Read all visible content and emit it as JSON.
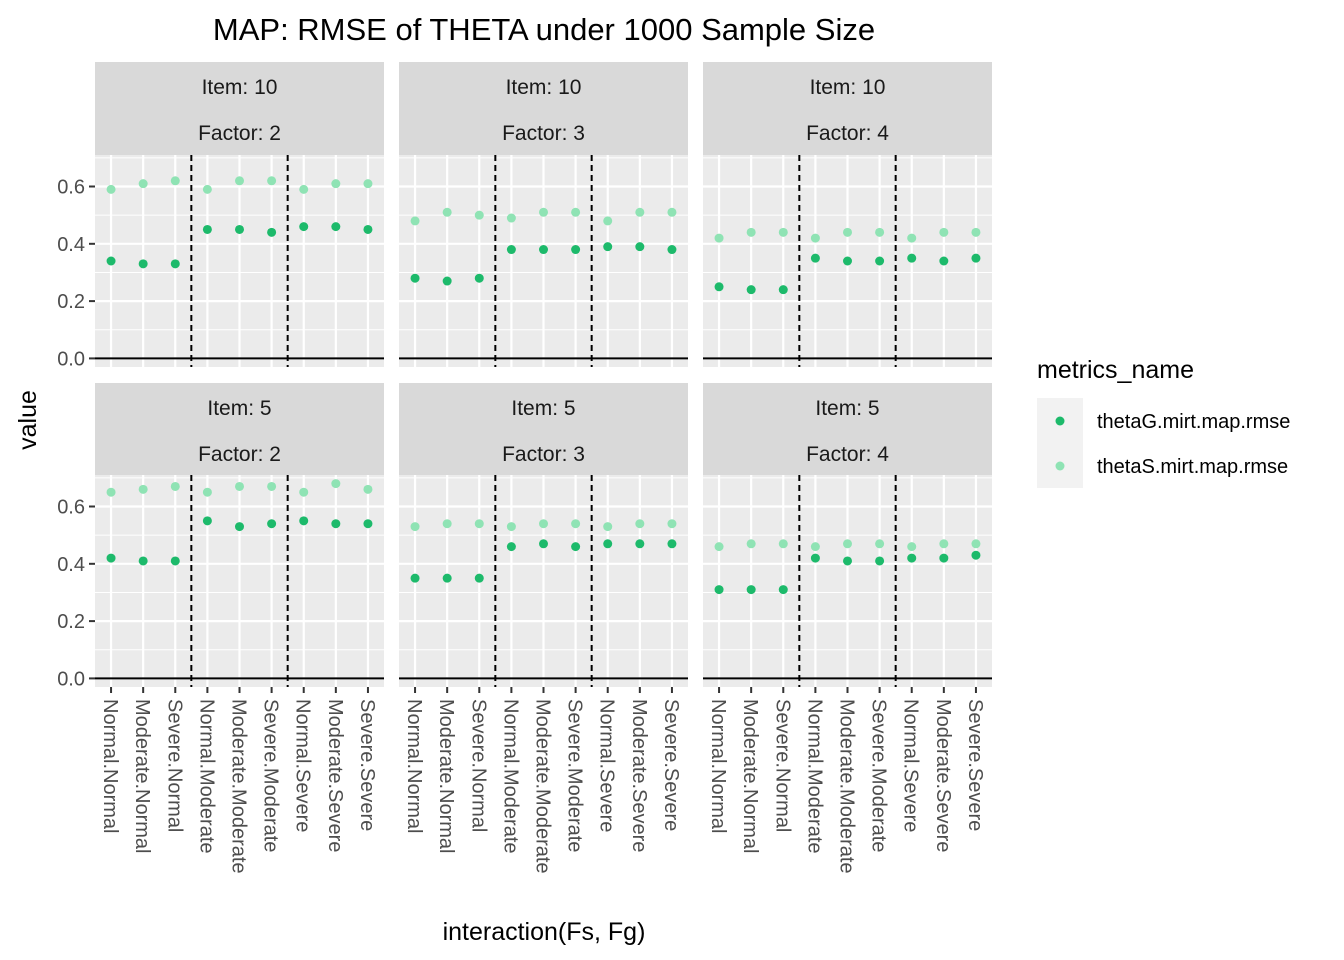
{
  "chart_data": {
    "type": "scatter",
    "title": "MAP: RMSE of THETA under 1000 Sample Size",
    "xlabel": "interaction(Fs, Fg)",
    "ylabel": "value",
    "categories": [
      "Normal.Normal",
      "Moderate.Normal",
      "Severe.Normal",
      "Normal.Moderate",
      "Moderate.Moderate",
      "Severe.Moderate",
      "Normal.Severe",
      "Moderate.Severe",
      "Severe.Severe"
    ],
    "ylim": [
      -0.03,
      0.71
    ],
    "yticks": [
      0.0,
      0.2,
      0.4,
      0.6
    ],
    "ytick_labels": [
      "0.0",
      "0.2",
      "0.4",
      "0.6"
    ],
    "hline": 0,
    "vlines_after_category": [
      3,
      6
    ],
    "legend": {
      "title": "metrics_name",
      "position": "right",
      "entries": [
        {
          "name": "thetaG.mirt.map.rmse",
          "color": "#1dba6b"
        },
        {
          "name": "thetaS.mirt.map.rmse",
          "color": "#8fe3b4"
        }
      ]
    },
    "grid": true,
    "panels": [
      {
        "strip1": "Item: 10",
        "strip2": "Factor: 2",
        "series": [
          {
            "name": "thetaG.mirt.map.rmse",
            "values": [
              0.34,
              0.33,
              0.33,
              0.45,
              0.45,
              0.44,
              0.46,
              0.46,
              0.45
            ]
          },
          {
            "name": "thetaS.mirt.map.rmse",
            "values": [
              0.59,
              0.61,
              0.62,
              0.59,
              0.62,
              0.62,
              0.59,
              0.61,
              0.61
            ]
          }
        ]
      },
      {
        "strip1": "Item: 10",
        "strip2": "Factor: 3",
        "series": [
          {
            "name": "thetaG.mirt.map.rmse",
            "values": [
              0.28,
              0.27,
              0.28,
              0.38,
              0.38,
              0.38,
              0.39,
              0.39,
              0.38
            ]
          },
          {
            "name": "thetaS.mirt.map.rmse",
            "values": [
              0.48,
              0.51,
              0.5,
              0.49,
              0.51,
              0.51,
              0.48,
              0.51,
              0.51
            ]
          }
        ]
      },
      {
        "strip1": "Item: 10",
        "strip2": "Factor: 4",
        "series": [
          {
            "name": "thetaG.mirt.map.rmse",
            "values": [
              0.25,
              0.24,
              0.24,
              0.35,
              0.34,
              0.34,
              0.35,
              0.34,
              0.35
            ]
          },
          {
            "name": "thetaS.mirt.map.rmse",
            "values": [
              0.42,
              0.44,
              0.44,
              0.42,
              0.44,
              0.44,
              0.42,
              0.44,
              0.44
            ]
          }
        ]
      },
      {
        "strip1": "Item: 5",
        "strip2": "Factor: 2",
        "series": [
          {
            "name": "thetaG.mirt.map.rmse",
            "values": [
              0.42,
              0.41,
              0.41,
              0.55,
              0.53,
              0.54,
              0.55,
              0.54,
              0.54
            ]
          },
          {
            "name": "thetaS.mirt.map.rmse",
            "values": [
              0.65,
              0.66,
              0.67,
              0.65,
              0.67,
              0.67,
              0.65,
              0.68,
              0.66
            ]
          }
        ]
      },
      {
        "strip1": "Item: 5",
        "strip2": "Factor: 3",
        "series": [
          {
            "name": "thetaG.mirt.map.rmse",
            "values": [
              0.35,
              0.35,
              0.35,
              0.46,
              0.47,
              0.46,
              0.47,
              0.47,
              0.47
            ]
          },
          {
            "name": "thetaS.mirt.map.rmse",
            "values": [
              0.53,
              0.54,
              0.54,
              0.53,
              0.54,
              0.54,
              0.53,
              0.54,
              0.54
            ]
          }
        ]
      },
      {
        "strip1": "Item: 5",
        "strip2": "Factor: 4",
        "series": [
          {
            "name": "thetaG.mirt.map.rmse",
            "values": [
              0.31,
              0.31,
              0.31,
              0.42,
              0.41,
              0.41,
              0.42,
              0.42,
              0.43
            ]
          },
          {
            "name": "thetaS.mirt.map.rmse",
            "values": [
              0.46,
              0.47,
              0.47,
              0.46,
              0.47,
              0.47,
              0.46,
              0.47,
              0.47
            ]
          }
        ]
      }
    ]
  }
}
